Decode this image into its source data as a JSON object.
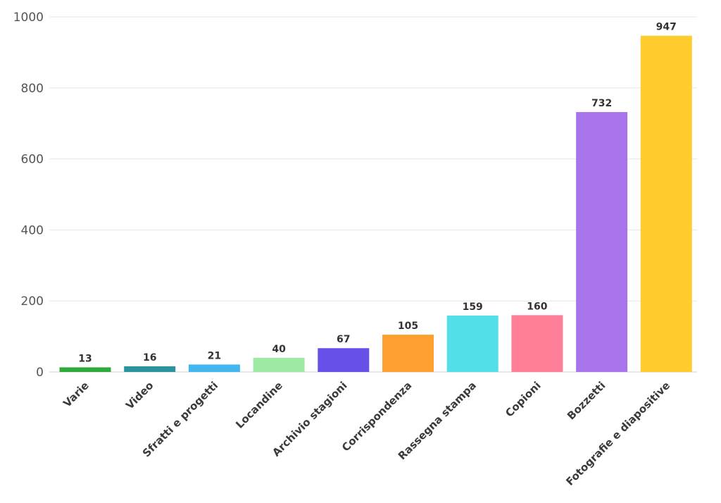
{
  "chart_data": {
    "type": "bar",
    "title": "",
    "xlabel": "",
    "ylabel": "",
    "ylim": [
      0,
      1000
    ],
    "yticks": [
      0,
      200,
      400,
      600,
      800,
      1000
    ],
    "grid": true,
    "categories": [
      "Varie",
      "Video",
      "Sfratti e progetti",
      "Locandine",
      "Archivio stagioni",
      "Corrispondenza",
      "Rassegna stampa",
      "Copioni",
      "Bozzetti",
      "Fotografie e diapositive"
    ],
    "values": [
      13,
      16,
      21,
      40,
      67,
      105,
      159,
      160,
      732,
      947
    ],
    "colors": [
      "#2eaa3a",
      "#2a939c",
      "#43b6f0",
      "#9ee9a4",
      "#6650e8",
      "#ff9f30",
      "#52dfe8",
      "#ff7f98",
      "#a874ec",
      "#ffcc2e"
    ]
  }
}
